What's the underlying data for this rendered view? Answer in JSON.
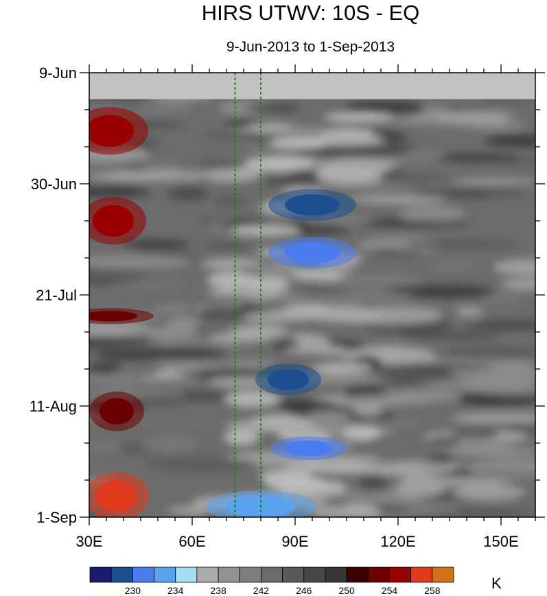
{
  "chart_data": {
    "type": "heatmap",
    "title": "HIRS UTWV: 10S - EQ",
    "subtitle": "9-Jun-2013 to 1-Sep-2013",
    "x_axis": {
      "range": [
        30,
        160
      ],
      "ticks": [
        {
          "value": 30,
          "label": "30E"
        },
        {
          "value": 60,
          "label": "60E"
        },
        {
          "value": 90,
          "label": "90E"
        },
        {
          "value": 120,
          "label": "120E"
        },
        {
          "value": 150,
          "label": "150E"
        }
      ]
    },
    "y_axis": {
      "range_days": [
        0,
        84
      ],
      "ticks": [
        {
          "value": 0,
          "label": "9-Jun"
        },
        {
          "value": 21,
          "label": "30-Jun"
        },
        {
          "value": 42,
          "label": "21-Jul"
        },
        {
          "value": 63,
          "label": "11-Aug"
        },
        {
          "value": 84,
          "label": "1-Sep"
        }
      ]
    },
    "missing_band_days": [
      0,
      5
    ],
    "reference_lines_lon": [
      72.5,
      80
    ],
    "colorbar": {
      "unit": "K",
      "labels": [
        "230",
        "234",
        "238",
        "242",
        "246",
        "250",
        "254",
        "258"
      ],
      "levels": [
        228,
        230,
        232,
        234,
        236,
        238,
        240,
        242,
        244,
        246,
        248,
        250,
        252,
        254,
        256,
        258,
        260
      ],
      "colors": [
        "#1a1a6e",
        "#1c4f8f",
        "#4a7cf0",
        "#5aa3ee",
        "#a6dcf4",
        "#ababab",
        "#939393",
        "#7e7e7e",
        "#6a6a6a",
        "#585858",
        "#474747",
        "#363636",
        "#3d0000",
        "#6a0000",
        "#9a0000",
        "#e03a1e",
        "#d4701a"
      ]
    },
    "anomalies": [
      {
        "lon": 36,
        "day": 11,
        "value": 257,
        "rx": 7,
        "ry": 3
      },
      {
        "lon": 37,
        "day": 28,
        "value": 257,
        "rx": 6,
        "ry": 3
      },
      {
        "lon": 36,
        "day": 46,
        "value": 255,
        "rx": 8,
        "ry": 1
      },
      {
        "lon": 38,
        "day": 64,
        "value": 255,
        "rx": 5,
        "ry": 2.5
      },
      {
        "lon": 38,
        "day": 80,
        "value": 259,
        "rx": 6,
        "ry": 3
      },
      {
        "lon": 95,
        "day": 25,
        "value": 230,
        "rx": 8,
        "ry": 2
      },
      {
        "lon": 95,
        "day": 34,
        "value": 232,
        "rx": 8,
        "ry": 2
      },
      {
        "lon": 88,
        "day": 58,
        "value": 230,
        "rx": 6,
        "ry": 2
      },
      {
        "lon": 94,
        "day": 71,
        "value": 233,
        "rx": 7,
        "ry": 1.5
      },
      {
        "lon": 80,
        "day": 82,
        "value": 235,
        "rx": 10,
        "ry": 2
      }
    ]
  }
}
